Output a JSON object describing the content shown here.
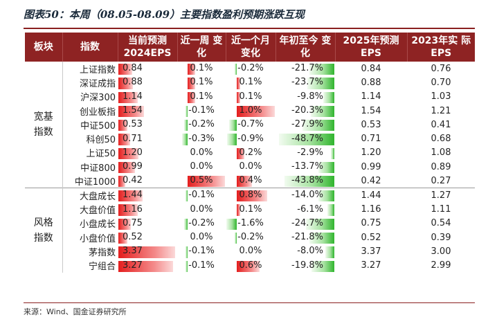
{
  "title": "图表50：本周（08.05-08.09）主要指数盈利预期涨跌互现",
  "headers": [
    "板块",
    "指数",
    "当前预测 2024EPS",
    "近一周 变化",
    "近一个月 变化",
    "年初至今 变化",
    "2025年预测 EPS",
    "2023年实 际EPS"
  ],
  "groups": [
    {
      "label": "宽基 指数",
      "rows": [
        {
          "name": "上证指数",
          "eps2024": "0.84",
          "wk": "0.1%",
          "mo": "-0.2%",
          "ytd": "-21.7%",
          "eps2025": "0.84",
          "eps2023": "0.76",
          "eps2024_v": 0.84,
          "wk_v": 0.1,
          "mo_v": -0.2,
          "ytd_v": -21.7
        },
        {
          "name": "深证成指",
          "eps2024": "0.88",
          "wk": "0.1%",
          "mo": "0.1%",
          "ytd": "-23.7%",
          "eps2025": "0.88",
          "eps2023": "0.70",
          "eps2024_v": 0.88,
          "wk_v": 0.1,
          "mo_v": 0.1,
          "ytd_v": -23.7
        },
        {
          "name": "沪深300",
          "eps2024": "1.14",
          "wk": "0.1%",
          "mo": "0.1%",
          "ytd": "-9.8%",
          "eps2025": "1.14",
          "eps2023": "1.03",
          "eps2024_v": 1.14,
          "wk_v": 0.1,
          "mo_v": 0.1,
          "ytd_v": -9.8
        },
        {
          "name": "创业板指",
          "eps2024": "1.54",
          "wk": "-0.1%",
          "mo": "1.0%",
          "ytd": "-20.3%",
          "eps2025": "1.54",
          "eps2023": "1.21",
          "eps2024_v": 1.54,
          "wk_v": -0.1,
          "mo_v": 1.0,
          "ytd_v": -20.3
        },
        {
          "name": "中证500",
          "eps2024": "0.53",
          "wk": "-0.2%",
          "mo": "-0.7%",
          "ytd": "-27.9%",
          "eps2025": "0.53",
          "eps2023": "0.41",
          "eps2024_v": 0.53,
          "wk_v": -0.2,
          "mo_v": -0.7,
          "ytd_v": -27.9
        },
        {
          "name": "科创50",
          "eps2024": "0.71",
          "wk": "-0.3%",
          "mo": "-0.9%",
          "ytd": "-48.7%",
          "eps2025": "0.71",
          "eps2023": "0.68",
          "eps2024_v": 0.71,
          "wk_v": -0.3,
          "mo_v": -0.9,
          "ytd_v": -48.7
        },
        {
          "name": "上证50",
          "eps2024": "1.20",
          "wk": "0.0%",
          "mo": "0.2%",
          "ytd": "-2.9%",
          "eps2025": "1.20",
          "eps2023": "1.08",
          "eps2024_v": 1.2,
          "wk_v": 0.0,
          "mo_v": 0.2,
          "ytd_v": -2.9
        },
        {
          "name": "中证800",
          "eps2024": "0.99",
          "wk": "0.0%",
          "mo": "0.0%",
          "ytd": "-13.7%",
          "eps2025": "0.99",
          "eps2023": "0.89",
          "eps2024_v": 0.99,
          "wk_v": 0.0,
          "mo_v": 0.0,
          "ytd_v": -13.7
        },
        {
          "name": "中证1000",
          "eps2024": "0.42",
          "wk": "0.5%",
          "mo": "0.4%",
          "ytd": "-43.8%",
          "eps2025": "0.42",
          "eps2023": "0.27",
          "eps2024_v": 0.42,
          "wk_v": 0.5,
          "mo_v": 0.4,
          "ytd_v": -43.8
        }
      ]
    },
    {
      "label": "风格 指数",
      "rows": [
        {
          "name": "大盘成长",
          "eps2024": "1.44",
          "wk": "-0.1%",
          "mo": "0.8%",
          "ytd": "-14.0%",
          "eps2025": "1.44",
          "eps2023": "1.27",
          "eps2024_v": 1.44,
          "wk_v": -0.1,
          "mo_v": 0.8,
          "ytd_v": -14.0
        },
        {
          "name": "大盘价值",
          "eps2024": "1.16",
          "wk": "0.0%",
          "mo": "0.1%",
          "ytd": "-6.1%",
          "eps2025": "1.16",
          "eps2023": "1.11",
          "eps2024_v": 1.16,
          "wk_v": 0.0,
          "mo_v": 0.1,
          "ytd_v": -6.1
        },
        {
          "name": "小盘成长",
          "eps2024": "0.75",
          "wk": "-0.2%",
          "mo": "-1.6%",
          "ytd": "-24.7%",
          "eps2025": "0.75",
          "eps2023": "0.54",
          "eps2024_v": 0.75,
          "wk_v": -0.2,
          "mo_v": -1.6,
          "ytd_v": -24.7
        },
        {
          "name": "小盘价值",
          "eps2024": "0.52",
          "wk": "0.0%",
          "mo": "-0.2%",
          "ytd": "-21.8%",
          "eps2025": "0.52",
          "eps2023": "0.39",
          "eps2024_v": 0.52,
          "wk_v": 0.0,
          "mo_v": -0.2,
          "ytd_v": -21.8
        },
        {
          "name": "茅指数",
          "eps2024": "3.37",
          "wk": "-0.1%",
          "mo": "0.0%",
          "ytd": "-8.0%",
          "eps2025": "3.37",
          "eps2023": "3.00",
          "eps2024_v": 3.37,
          "wk_v": -0.1,
          "mo_v": 0.0,
          "ytd_v": -8.0
        },
        {
          "name": "宁组合",
          "eps2024": "3.27",
          "wk": "-0.1%",
          "mo": "0.6%",
          "ytd": "-19.8%",
          "eps2025": "3.27",
          "eps2023": "2.99",
          "eps2024_v": 3.27,
          "wk_v": -0.1,
          "mo_v": 0.6,
          "ytd_v": -19.8
        }
      ]
    }
  ],
  "scales": {
    "eps_max": 3.4,
    "wk_max": 0.5,
    "mo_max": 1.0,
    "ytd_max": 50
  },
  "colors": {
    "header_bg": "#8e2323",
    "positive_bar": "#e41e1e",
    "negative_bar": "#30b52e"
  },
  "source": "来源：Wind、国金证券研究所"
}
